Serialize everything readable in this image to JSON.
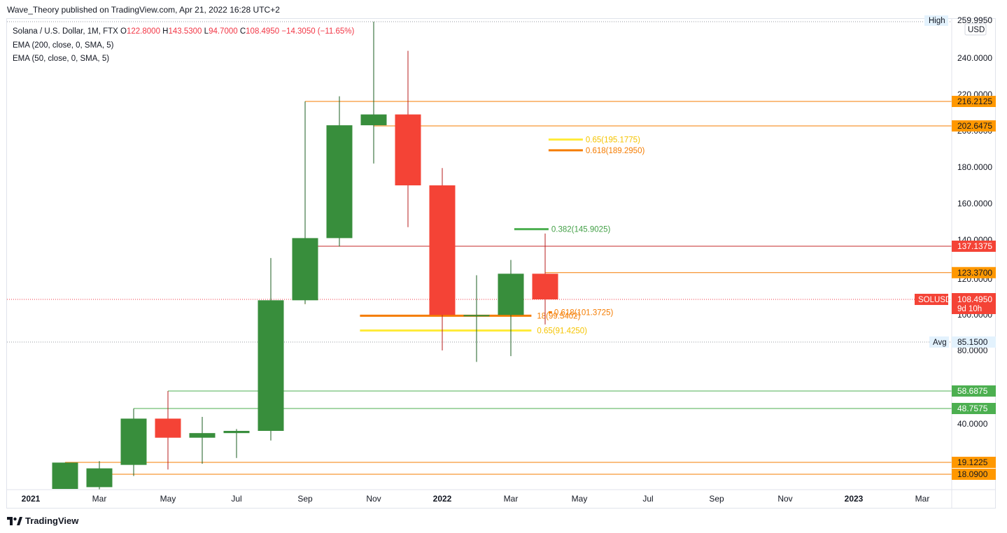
{
  "header": {
    "text": "Wave_Theory published on TradingView.com, Apr 21, 2022 16:28 UTC+2"
  },
  "legend": {
    "symbol": "Solana / U.S. Dollar, 1M, FTX",
    "o_label": "O",
    "o_value": "122.8000",
    "h_label": "H",
    "h_value": "143.5300",
    "l_label": "L",
    "l_value": "94.7000",
    "c_label": "C",
    "c_value": "108.4950",
    "change": "−14.3050 (−11.65%)",
    "ema200": "EMA (200, close, 0, SMA, 5)",
    "ema50": "EMA (50, close, 0, SMA, 5)"
  },
  "footer": {
    "brand": "TradingView"
  },
  "colors": {
    "up": "#388e3c",
    "down": "#f44336",
    "orange": "#f57c00",
    "yellow": "#ffeb3b",
    "green": "#4caf50",
    "red_line": "#c62828"
  },
  "chart_data": {
    "type": "candlestick",
    "interval": "1M",
    "ylim": [
      14,
      260
    ],
    "y_ticks": [
      40,
      80,
      100,
      120,
      140,
      160,
      180,
      200,
      220,
      240
    ],
    "y_tick_labels": [
      "40.0000",
      "80.0000",
      "100.0000",
      "120.0000",
      "140.0000",
      "160.0000",
      "180.0000",
      "200.0000",
      "220.0000",
      "240.0000"
    ],
    "x_ticks": [
      "2021",
      "Mar",
      "May",
      "Jul",
      "Sep",
      "Nov",
      "2022",
      "Mar",
      "May",
      "Jul",
      "Sep",
      "Nov",
      "2023",
      "Mar"
    ],
    "candles": [
      {
        "month": "2021-01",
        "open": 14.0,
        "high": 19.1,
        "low": 14.0,
        "close": 19.1
      },
      {
        "month": "2021-02",
        "open": 14.5,
        "high": 19.8,
        "low": 13.8,
        "close": 18.6
      },
      {
        "month": "2021-03",
        "open": 18.9,
        "high": 48.7,
        "low": 17.6,
        "close": 43.0
      },
      {
        "month": "2021-04",
        "open": 43.0,
        "high": 58.7,
        "low": 18.5,
        "close": 32.5
      },
      {
        "month": "2021-05",
        "open": 32.5,
        "high": 44.0,
        "low": 19.0,
        "close": 35.0
      },
      {
        "month": "2021-06",
        "open": 35.0,
        "high": 37.2,
        "low": 21.5,
        "close": 36.2
      },
      {
        "month": "2021-07",
        "open": 36.2,
        "high": 131.0,
        "low": 31.0,
        "close": 108.0
      },
      {
        "month": "2021-08",
        "open": 108.0,
        "high": 216.2,
        "low": 106.0,
        "close": 141.0
      },
      {
        "month": "2021-09",
        "open": 141.0,
        "high": 219.0,
        "low": 137.0,
        "close": 203.0
      },
      {
        "month": "2021-10",
        "open": 203.0,
        "high": 259.99,
        "low": 182.0,
        "close": 209.0
      },
      {
        "month": "2021-11",
        "open": 209.0,
        "high": 244.0,
        "low": 147.0,
        "close": 170.0
      },
      {
        "month": "2021-12",
        "open": 170.0,
        "high": 179.5,
        "low": 80.0,
        "close": 99.9
      },
      {
        "month": "2022-01",
        "open": 99.9,
        "high": 122.0,
        "low": 74.0,
        "close": 99.9
      },
      {
        "month": "2022-02",
        "open": 99.9,
        "high": 130.0,
        "low": 77.0,
        "close": 122.8
      },
      {
        "month": "2022-03",
        "open": 122.8,
        "high": 143.53,
        "low": 94.7,
        "close": 108.495
      }
    ],
    "horizontal_levels": [
      {
        "value": 216.2125,
        "label": "216.2125",
        "color": "#f57c00",
        "from_month": "2021-08"
      },
      {
        "value": 202.6475,
        "label": "202.6475",
        "color": "#f57c00",
        "from_month": "2021-10"
      },
      {
        "value": 137.1375,
        "label": "137.1375",
        "color": "#c62828",
        "from_month": "2021-08"
      },
      {
        "value": 123.37,
        "label": "123.3700",
        "color": "#f57c00",
        "from_month": "2022-03"
      },
      {
        "value": 58.6875,
        "label": "58.6875",
        "color": "#4caf50",
        "from_month": "2021-04"
      },
      {
        "value": 48.7575,
        "label": "48.7575",
        "color": "#4caf50",
        "from_month": "2021-03"
      },
      {
        "value": 19.1225,
        "label": "19.1225",
        "color": "#f57c00",
        "from_month": "2021-01"
      },
      {
        "value": 18.09,
        "label": "18.0900",
        "color": "#f57c00",
        "from_month": "2021-02"
      }
    ],
    "fib_levels": [
      {
        "value": 195.1775,
        "label": "0.65(195.1775)",
        "color": "#ffeb3b",
        "text_color": "#f5c400",
        "from_month": "2022-03.1",
        "to_month": "2022-04.1"
      },
      {
        "value": 189.295,
        "label": "0.618(189.2950)",
        "color": "#f57c00",
        "text_color": "#f57c00",
        "from_month": "2022-03.1",
        "to_month": "2022-04.1"
      },
      {
        "value": 145.9025,
        "label": "0.382(145.9025)",
        "color": "#4caf50",
        "text_color": "#43a047",
        "from_month": "2022-02.1",
        "to_month": "2022-03.1"
      },
      {
        "value": 101.3725,
        "label": "0.618(101.3725)",
        "color": "#f57c00",
        "text_color": "#f57c00",
        "from_month": "2022-03.1",
        "to_month": "2022-03.2"
      },
      {
        "value": 99.5,
        "label": "18(99.5402)",
        "color": "#f57c00",
        "text_color": "#f57c00",
        "from_month": "2021-09.6",
        "to_month": "2022-02.6"
      },
      {
        "value": 91.425,
        "label": "0.65(91.4250)",
        "color": "#ffeb3b",
        "text_color": "#f5c400",
        "from_month": "2021-09.6",
        "to_month": "2022-02.6"
      }
    ],
    "last_price": {
      "symbol": "SOLUSD",
      "value": 108.495,
      "label": "108.4950",
      "countdown": "9d 10h"
    },
    "high_label": {
      "text": "High",
      "value": "259.9950"
    },
    "avg_label": {
      "text": "Avg",
      "value": 85.15,
      "label": "85.1500"
    },
    "currency": "USD"
  }
}
